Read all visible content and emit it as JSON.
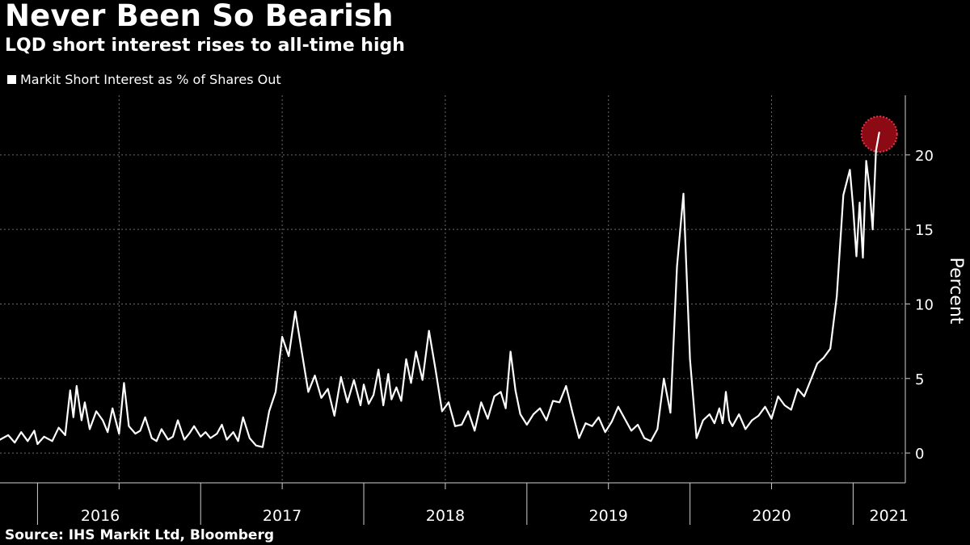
{
  "header": {
    "title": "Never Been So Bearish",
    "subtitle": "LQD short interest rises to all-time high"
  },
  "footer": {
    "source": "Source: IHS Markit Ltd, Bloomberg"
  },
  "colors": {
    "background": "#000000",
    "line": "#ffffff",
    "grid": "#6a6a6a",
    "highlight": "#8b0a14",
    "highlight_border": "#e8344a"
  },
  "chart_data": {
    "type": "line",
    "title": "Never Been So Bearish",
    "subtitle": "LQD short interest rises to all-time high",
    "legend": [
      "Markit Short Interest as % of Shares Out"
    ],
    "legend_position": "top-left",
    "xlabel": "",
    "ylabel": "Percent",
    "ylim": [
      -2,
      24
    ],
    "y_ticks": [
      0,
      5,
      10,
      15,
      20
    ],
    "y_tick_labels": [
      "0",
      "5",
      "10",
      "15",
      "20"
    ],
    "x_range": [
      2015.77,
      2021.32
    ],
    "x_tick_labels": [
      "2016",
      "2017",
      "2018",
      "2019",
      "2020",
      "2021"
    ],
    "year_boundaries": [
      2016,
      2017,
      2018,
      2019,
      2020,
      2021
    ],
    "grid": true,
    "annotation": {
      "type": "circle-highlight",
      "x": 2021.16,
      "y": 21.5,
      "note": "all-time high"
    },
    "series": [
      {
        "name": "Markit Short Interest as % of Shares Out",
        "x": [
          2015.77,
          2015.82,
          2015.86,
          2015.9,
          2015.94,
          2015.98,
          2016.0,
          2016.04,
          2016.09,
          2016.13,
          2016.17,
          2016.2,
          2016.22,
          2016.24,
          2016.27,
          2016.29,
          2016.32,
          2016.36,
          2016.4,
          2016.43,
          2016.46,
          2016.5,
          2016.53,
          2016.56,
          2016.6,
          2016.63,
          2016.66,
          2016.7,
          2016.73,
          2016.76,
          2016.8,
          2016.83,
          2016.86,
          2016.9,
          2016.93,
          2016.96,
          2017.0,
          2017.03,
          2017.06,
          2017.1,
          2017.13,
          2017.16,
          2017.2,
          2017.23,
          2017.26,
          2017.3,
          2017.34,
          2017.38,
          2017.42,
          2017.46,
          2017.5,
          2017.54,
          2017.58,
          2017.62,
          2017.66,
          2017.7,
          2017.74,
          2017.78,
          2017.82,
          2017.86,
          2017.9,
          2017.94,
          2017.98,
          2018.0,
          2018.03,
          2018.06,
          2018.09,
          2018.12,
          2018.15,
          2018.17,
          2018.2,
          2018.23,
          2018.26,
          2018.29,
          2018.32,
          2018.36,
          2018.4,
          2018.44,
          2018.48,
          2018.52,
          2018.56,
          2018.6,
          2018.64,
          2018.68,
          2018.72,
          2018.76,
          2018.8,
          2018.84,
          2018.87,
          2018.9,
          2018.93,
          2018.96,
          2019.0,
          2019.04,
          2019.08,
          2019.12,
          2019.16,
          2019.2,
          2019.24,
          2019.28,
          2019.32,
          2019.36,
          2019.4,
          2019.44,
          2019.48,
          2019.52,
          2019.56,
          2019.6,
          2019.64,
          2019.68,
          2019.72,
          2019.76,
          2019.8,
          2019.84,
          2019.88,
          2019.92,
          2019.96,
          2020.0,
          2020.04,
          2020.08,
          2020.12,
          2020.15,
          2020.18,
          2020.2,
          2020.22,
          2020.24,
          2020.26,
          2020.3,
          2020.34,
          2020.38,
          2020.42,
          2020.46,
          2020.5,
          2020.54,
          2020.58,
          2020.62,
          2020.66,
          2020.7,
          2020.74,
          2020.78,
          2020.82,
          2020.86,
          2020.9,
          2020.94,
          2020.98,
          2021.0,
          2021.02,
          2021.04,
          2021.06,
          2021.08,
          2021.1,
          2021.12,
          2021.14,
          2021.16
        ],
        "values": [
          0.9,
          1.2,
          0.7,
          1.4,
          0.8,
          1.5,
          0.6,
          1.1,
          0.8,
          1.7,
          1.2,
          4.2,
          2.4,
          4.5,
          2.2,
          3.4,
          1.6,
          2.8,
          2.2,
          1.4,
          3.0,
          1.3,
          4.7,
          1.8,
          1.3,
          1.5,
          2.4,
          1.0,
          0.8,
          1.6,
          0.9,
          1.1,
          2.2,
          0.9,
          1.3,
          1.8,
          1.1,
          1.4,
          1.0,
          1.3,
          1.9,
          0.9,
          1.4,
          0.8,
          2.4,
          1.0,
          0.5,
          0.4,
          2.8,
          4.1,
          7.8,
          6.5,
          9.5,
          6.8,
          4.1,
          5.2,
          3.7,
          4.3,
          2.5,
          5.1,
          3.4,
          4.9,
          3.2,
          4.6,
          3.3,
          3.9,
          5.6,
          3.2,
          5.3,
          3.6,
          4.4,
          3.5,
          6.3,
          4.7,
          6.8,
          4.9,
          8.2,
          5.6,
          2.8,
          3.4,
          1.8,
          1.9,
          2.8,
          1.5,
          3.4,
          2.3,
          3.8,
          4.1,
          3.0,
          6.8,
          4.2,
          2.6,
          1.9,
          2.6,
          3.0,
          2.2,
          3.5,
          3.4,
          4.5,
          2.7,
          1.0,
          2.0,
          1.8,
          2.4,
          1.4,
          2.1,
          3.1,
          2.3,
          1.5,
          1.9,
          1.0,
          0.8,
          1.6,
          5.0,
          2.7,
          12.5,
          17.4,
          6.3,
          1.0,
          2.2,
          2.6,
          2.0,
          3.0,
          2.0,
          4.1,
          2.2,
          1.8,
          2.6,
          1.6,
          2.2,
          2.5,
          3.1,
          2.3,
          3.8,
          3.2,
          2.9,
          4.3,
          3.8,
          4.9,
          6.0,
          6.4,
          7.0,
          10.5,
          17.3,
          19.0,
          16.5,
          13.2,
          16.8,
          13.1,
          19.6,
          17.8,
          15.0,
          20.3,
          21.5
        ]
      }
    ]
  }
}
